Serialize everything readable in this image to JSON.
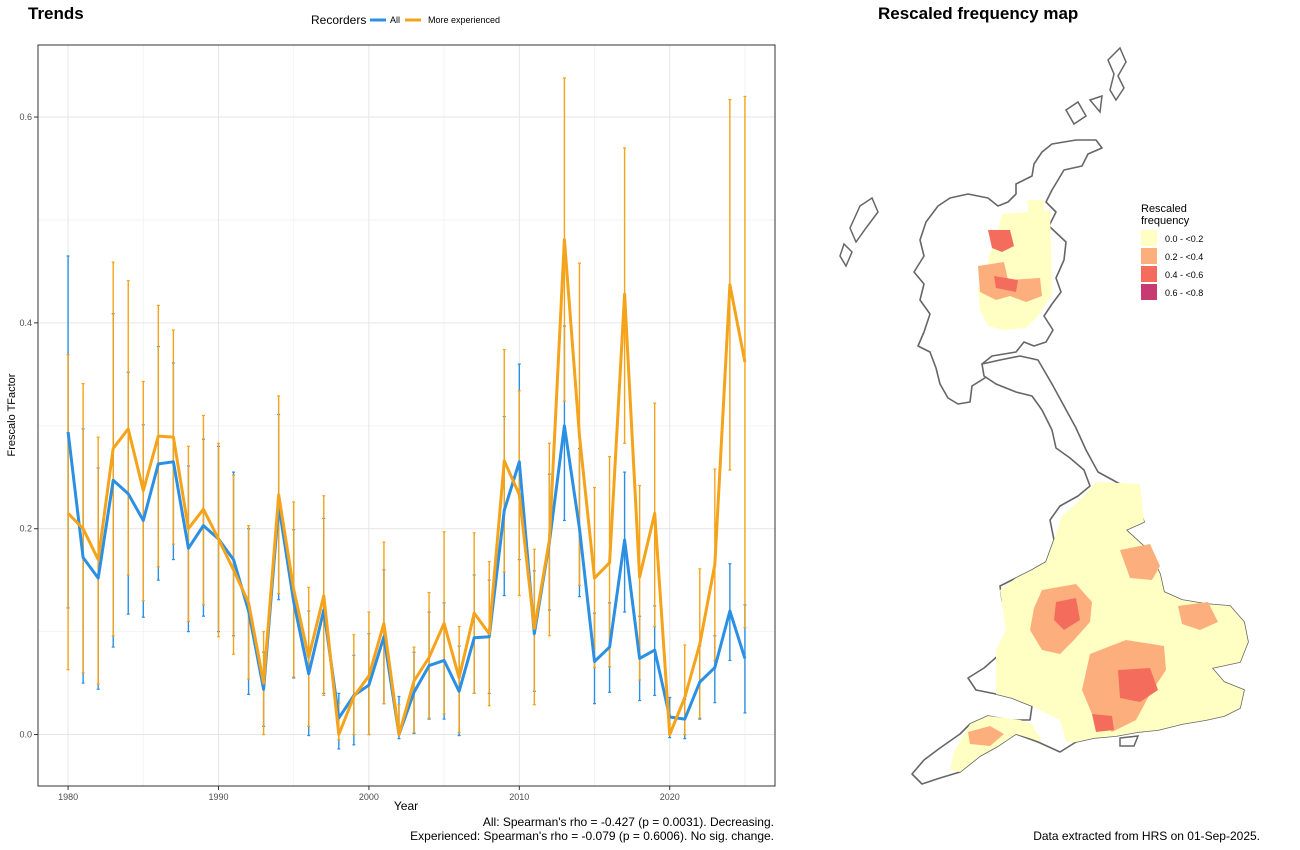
{
  "trends": {
    "title": "Trends",
    "legend_title": "Recorders",
    "note_all": "All: Spearman's rho = -0.427 (p = 0.0031). Decreasing.",
    "note_exp": "Experienced: Spearman's rho = -0.079 (p = 0.6006). No sig. change."
  },
  "map": {
    "title": "Rescaled frequency map",
    "legend_title_1": "Rescaled",
    "legend_title_2": "frequency",
    "legend": [
      {
        "label": "0.0 - <0.2",
        "color": "#ffffc4"
      },
      {
        "label": "0.2 - <0.4",
        "color": "#fcaf7c"
      },
      {
        "label": "0.4 - <0.6",
        "color": "#f46d5c"
      },
      {
        "label": "0.6 - <0.8",
        "color": "#c83a72"
      }
    ],
    "data_note": "Data extracted from HRS on 01-Sep-2025."
  },
  "chart_data": {
    "type": "line",
    "xlabel": "Year",
    "ylabel": "Frescalo TFactor",
    "xlim": [
      1978,
      2027
    ],
    "ylim": [
      -0.05,
      0.67
    ],
    "xticks": [
      1980,
      1990,
      2000,
      2010,
      2020
    ],
    "yticks": [
      0.0,
      0.2,
      0.4,
      0.6
    ],
    "grid": true,
    "legend_position": "top",
    "x": [
      1980,
      1981,
      1982,
      1983,
      1984,
      1985,
      1986,
      1987,
      1988,
      1989,
      1990,
      1991,
      1992,
      1993,
      1994,
      1995,
      1996,
      1997,
      1998,
      1999,
      2000,
      2001,
      2002,
      2003,
      2004,
      2005,
      2006,
      2007,
      2008,
      2009,
      2010,
      2011,
      2012,
      2013,
      2014,
      2015,
      2016,
      2017,
      2018,
      2019,
      2020,
      2021,
      2022,
      2023,
      2024,
      2025
    ],
    "series": [
      {
        "name": "All",
        "color": "#2b90e4",
        "values": [
          0.294,
          0.172,
          0.152,
          0.247,
          0.234,
          0.208,
          0.263,
          0.265,
          0.181,
          0.203,
          0.19,
          0.17,
          0.12,
          0.044,
          0.223,
          0.129,
          0.059,
          0.121,
          0.016,
          0.038,
          0.048,
          0.095,
          0.0,
          0.041,
          0.067,
          0.072,
          0.042,
          0.094,
          0.095,
          0.218,
          0.265,
          0.098,
          0.187,
          0.3,
          0.2,
          0.071,
          0.085,
          0.189,
          0.074,
          0.082,
          0.017,
          0.015,
          0.051,
          0.065,
          0.12,
          0.074
        ],
        "lower": [
          0.123,
          0.05,
          0.044,
          0.085,
          0.117,
          0.114,
          0.15,
          0.17,
          0.1,
          0.115,
          0.1,
          0.096,
          0.039,
          0.008,
          0.131,
          0.055,
          -0.001,
          0.04,
          -0.014,
          -0.01,
          0.0,
          0.03,
          -0.004,
          0.001,
          0.015,
          0.015,
          -0.001,
          0.04,
          0.04,
          0.135,
          0.17,
          0.042,
          0.121,
          0.208,
          0.134,
          0.03,
          0.041,
          0.119,
          0.033,
          0.038,
          -0.003,
          -0.004,
          0.015,
          0.031,
          0.072,
          0.021
        ],
        "upper": [
          0.465,
          0.297,
          0.259,
          0.409,
          0.352,
          0.301,
          0.377,
          0.361,
          0.261,
          0.287,
          0.28,
          0.255,
          0.2,
          0.08,
          0.311,
          0.199,
          0.12,
          0.21,
          0.04,
          0.077,
          0.098,
          0.16,
          0.037,
          0.08,
          0.119,
          0.128,
          0.086,
          0.155,
          0.15,
          0.309,
          0.36,
          0.159,
          0.253,
          0.397,
          0.278,
          0.118,
          0.128,
          0.255,
          0.115,
          0.125,
          0.036,
          0.034,
          0.086,
          0.096,
          0.166,
          0.126
        ]
      },
      {
        "name": "More experienced",
        "color": "#f5a31a",
        "values": [
          0.215,
          0.2,
          0.17,
          0.278,
          0.297,
          0.237,
          0.29,
          0.289,
          0.2,
          0.219,
          0.19,
          0.16,
          0.128,
          0.05,
          0.233,
          0.141,
          0.075,
          0.135,
          0.0,
          0.037,
          0.057,
          0.108,
          0.0,
          0.052,
          0.075,
          0.108,
          0.055,
          0.118,
          0.098,
          0.266,
          0.233,
          0.103,
          0.189,
          0.481,
          0.29,
          0.152,
          0.167,
          0.428,
          0.153,
          0.215,
          0.0,
          0.036,
          0.088,
          0.165,
          0.437,
          0.362
        ],
        "lower": [
          0.063,
          0.06,
          0.049,
          0.096,
          0.155,
          0.13,
          0.163,
          0.185,
          0.11,
          0.126,
          0.095,
          0.078,
          0.054,
          0.0,
          0.137,
          0.056,
          0.008,
          0.038,
          -0.005,
          0.0,
          0.0,
          0.03,
          0.0,
          0.002,
          0.016,
          0.02,
          0.002,
          0.04,
          0.028,
          0.158,
          0.135,
          0.029,
          0.096,
          0.324,
          0.145,
          0.065,
          0.066,
          0.283,
          0.053,
          0.105,
          0.0,
          0.0,
          0.016,
          0.072,
          0.257,
          0.104
        ],
        "upper": [
          0.369,
          0.341,
          0.289,
          0.459,
          0.441,
          0.343,
          0.417,
          0.393,
          0.28,
          0.31,
          0.283,
          0.252,
          0.203,
          0.1,
          0.329,
          0.226,
          0.143,
          0.232,
          0.03,
          0.097,
          0.119,
          0.187,
          0.029,
          0.085,
          0.138,
          0.197,
          0.105,
          0.196,
          0.168,
          0.374,
          0.334,
          0.18,
          0.283,
          0.638,
          0.458,
          0.24,
          0.27,
          0.57,
          0.242,
          0.322,
          0.01,
          0.087,
          0.161,
          0.258,
          0.617,
          0.62
        ]
      }
    ]
  }
}
